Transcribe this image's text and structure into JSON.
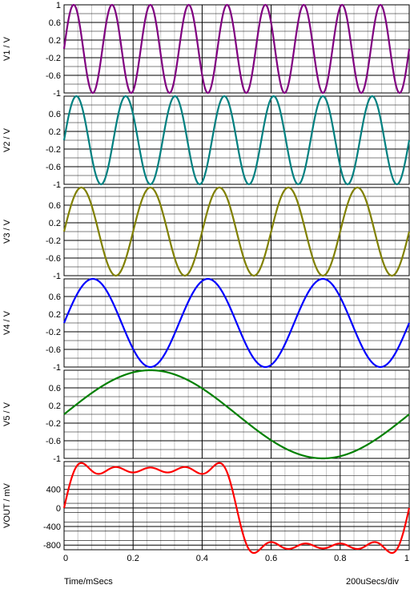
{
  "xaxis": {
    "label": "Time/mSecs",
    "scale_label": "200uSecs/div",
    "range": [
      0,
      1
    ],
    "tick_labels": [
      "0",
      "0.2",
      "0.4",
      "0.6",
      "0.8",
      "1"
    ]
  },
  "chart_data": [
    {
      "type": "line",
      "ylabel": "V1 / V",
      "ylim": [
        -1,
        1
      ],
      "yticks": [
        "1",
        "0.6",
        "0.2",
        "-0.2",
        "-0.6",
        "-1"
      ],
      "color": "#800080",
      "series": [
        {
          "function": "sine",
          "amplitude": 1,
          "frequency_khz": 9,
          "offset": 0
        }
      ],
      "grid": true
    },
    {
      "type": "line",
      "ylabel": "V2 / V",
      "ylim": [
        -1,
        1
      ],
      "yticks": [
        "0.6",
        "0.2",
        "-0.2",
        "-0.6",
        "-1"
      ],
      "color": "#008080",
      "series": [
        {
          "function": "sine",
          "amplitude": 1,
          "frequency_khz": 7,
          "offset": 0
        }
      ],
      "grid": true
    },
    {
      "type": "line",
      "ylabel": "V3 / V",
      "ylim": [
        -1,
        1
      ],
      "yticks": [
        "0.6",
        "0.2",
        "-0.2",
        "-0.6",
        "-1"
      ],
      "color": "#808000",
      "series": [
        {
          "function": "sine",
          "amplitude": 1,
          "frequency_khz": 5,
          "offset": 0
        }
      ],
      "grid": true
    },
    {
      "type": "line",
      "ylabel": "V4 / V",
      "ylim": [
        -1,
        1
      ],
      "yticks": [
        "0.6",
        "0.2",
        "-0.2",
        "-0.6",
        "-1"
      ],
      "color": "#0000ff",
      "series": [
        {
          "function": "sine",
          "amplitude": 1,
          "frequency_khz": 3,
          "offset": 0
        }
      ],
      "grid": true
    },
    {
      "type": "line",
      "ylabel": "V5 / V",
      "ylim": [
        -1,
        1
      ],
      "yticks": [
        "0.6",
        "0.2",
        "-0.2",
        "-0.6",
        "-1"
      ],
      "color": "#008000",
      "series": [
        {
          "function": "sine",
          "amplitude": 1,
          "frequency_khz": 1,
          "offset": 0
        }
      ],
      "grid": true
    },
    {
      "type": "line",
      "ylabel": "VOUT / mV",
      "ylim": [
        -900,
        1000
      ],
      "yticks": [
        "400",
        "0",
        "-400",
        "-800"
      ],
      "color": "#ff0000",
      "series": [
        {
          "function": "square_wave_fourier_partial_sum",
          "harmonics_khz": [
            1,
            3,
            5,
            7,
            9
          ],
          "amplitude_mv": 1000
        }
      ],
      "grid": true
    }
  ]
}
